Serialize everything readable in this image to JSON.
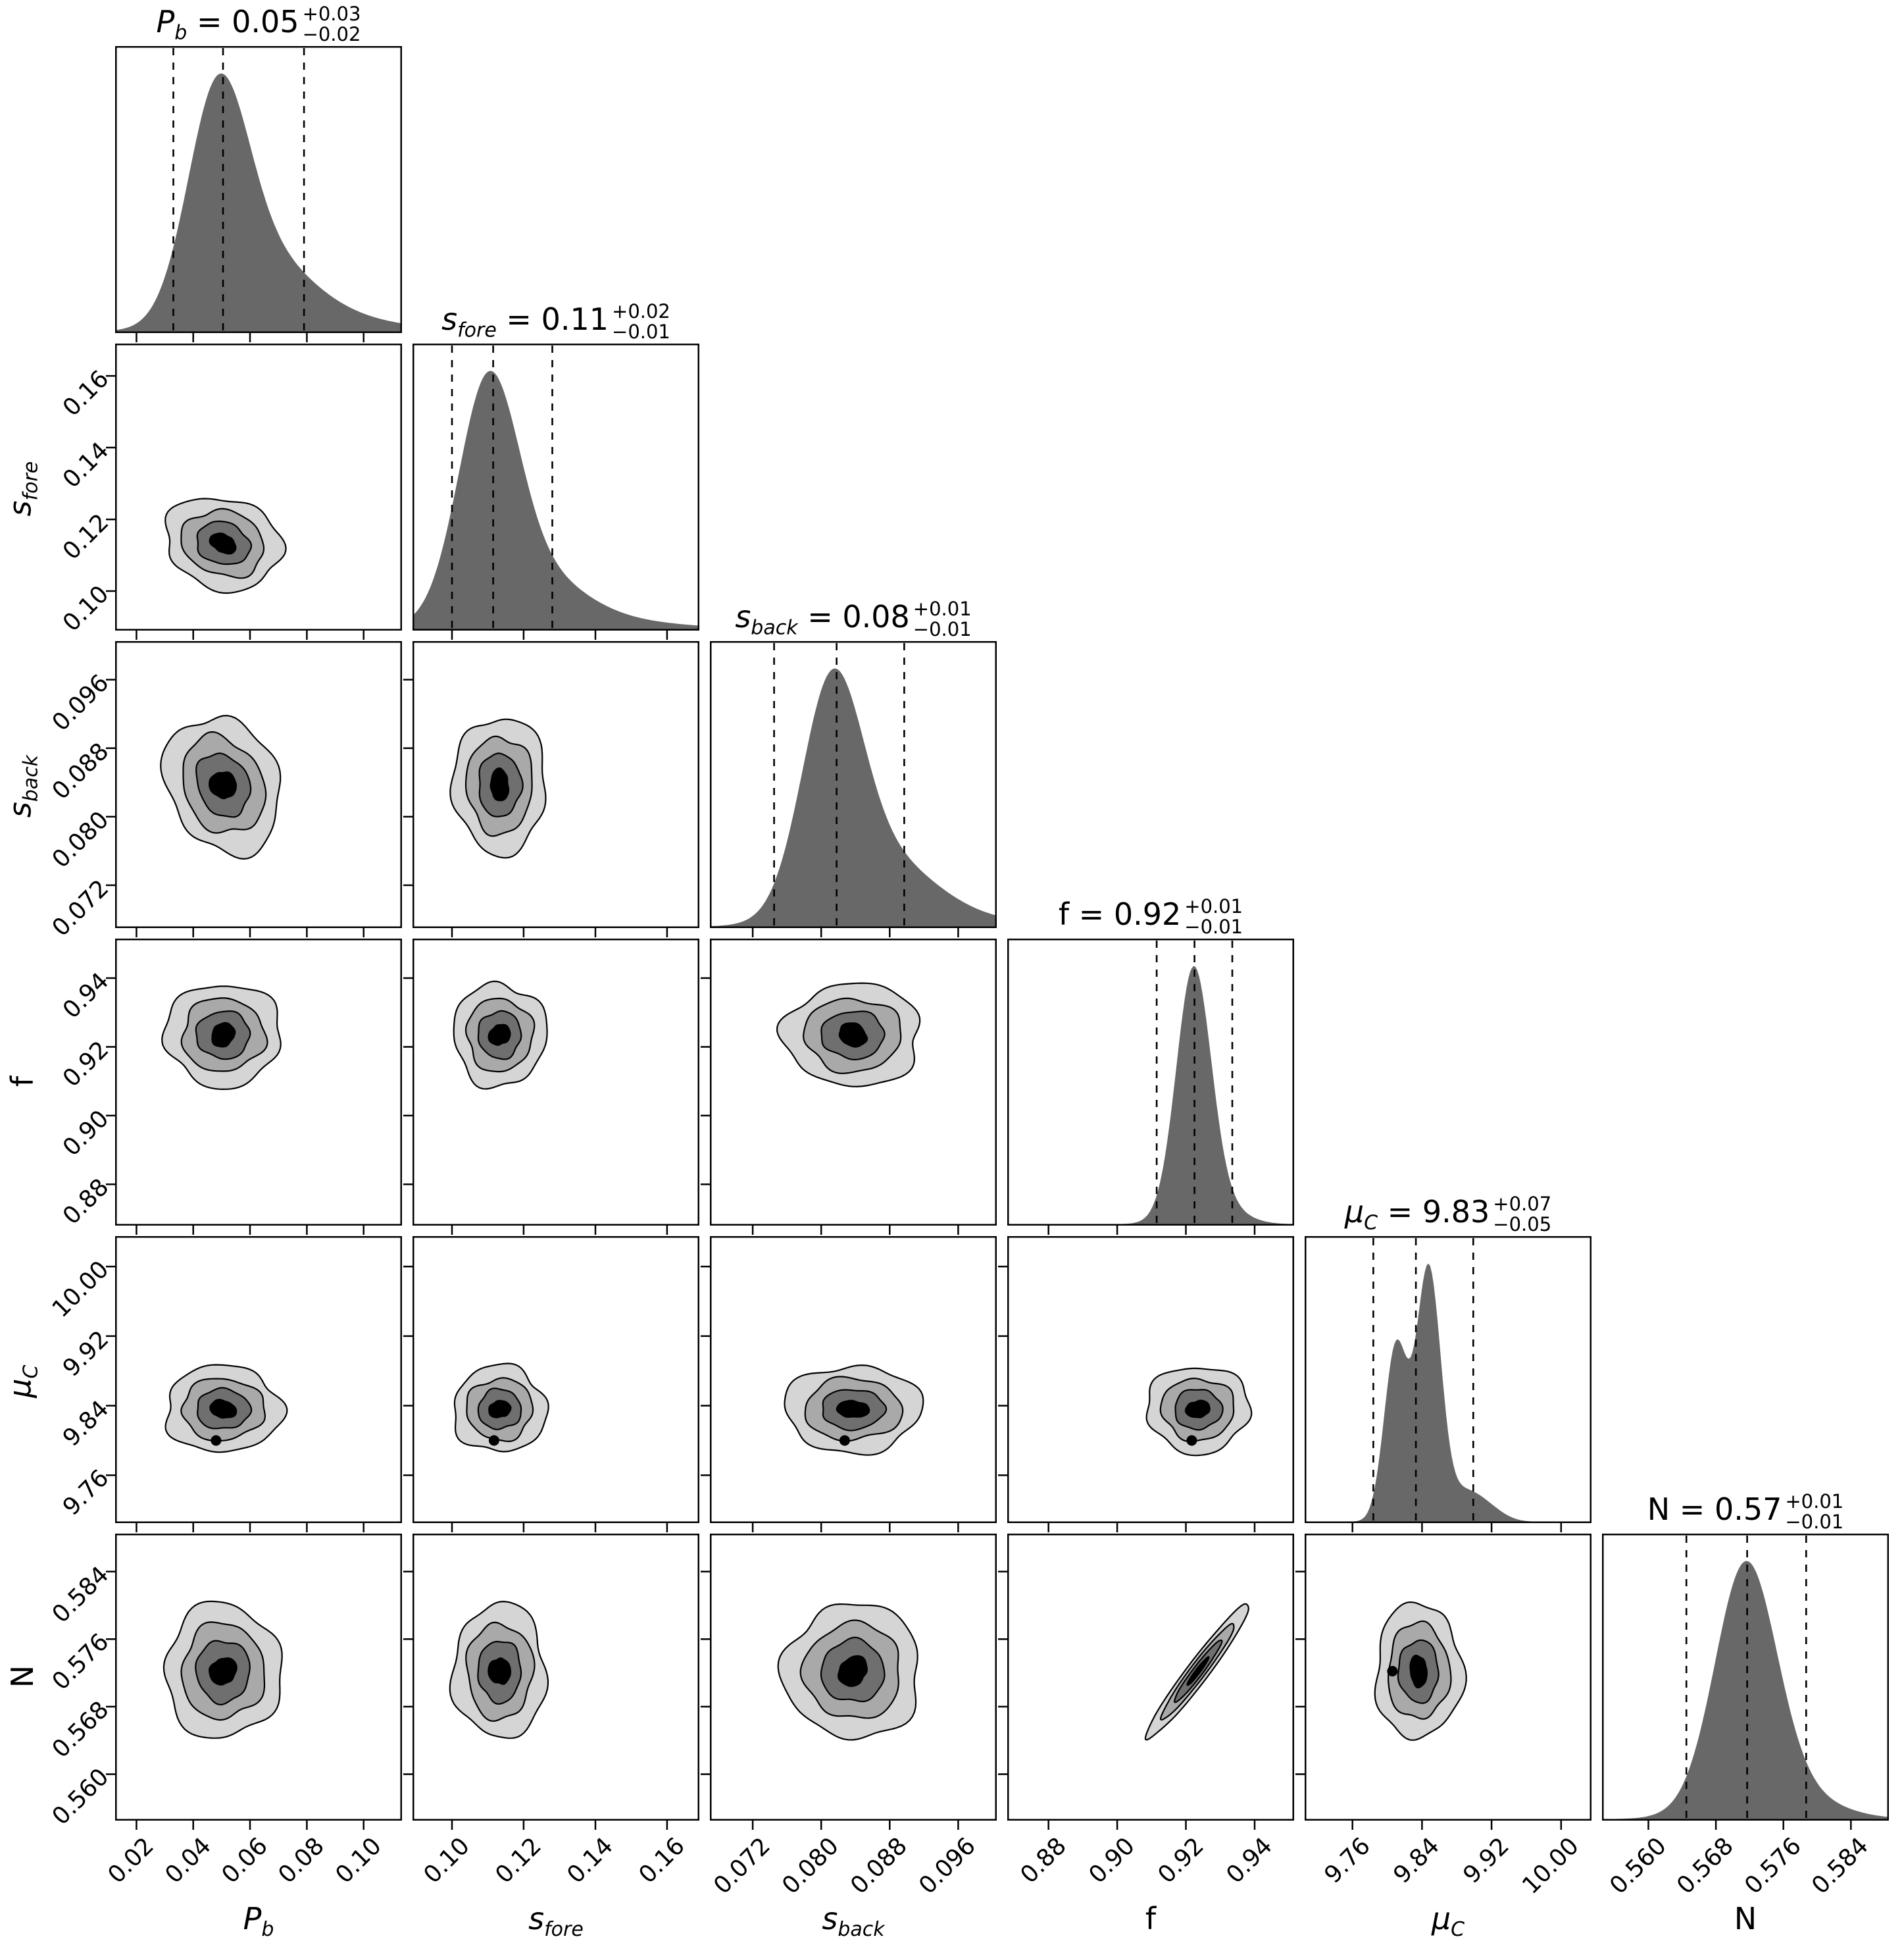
{
  "figure": {
    "kind": "corner-plot",
    "background": "#ffffff",
    "n_parameters": 6
  },
  "style": {
    "hist_fill": "#686868",
    "contour_fills": [
      "#d5d5d5",
      "#a9a9a9",
      "#6f6f6f",
      "#000000"
    ],
    "line_color": "#000000",
    "dash_color": "#000000"
  },
  "chart_data": {
    "type": "corner",
    "layout_hint": "6x6 lower-triangle corner plot; diagonals are 1-D marginal densities with dashed 16/50/84 percentile lines; off-diagonals are 2-D contour maps with 4 shaded levels",
    "parameters": [
      {
        "key": "P_b",
        "label": {
          "base": "P",
          "sub": "b",
          "italic": true
        },
        "summary": {
          "value": "0.05",
          "plus": "+0.03",
          "minus": "−0.02"
        },
        "range": [
          0.0125,
          0.1135
        ],
        "ticks": [
          0.02,
          0.04,
          0.06,
          0.08,
          0.1
        ],
        "tick_labels": [
          "0.02",
          "0.04",
          "0.06",
          "0.08",
          "0.10"
        ],
        "quantiles": [
          0.033,
          0.0505,
          0.079
        ],
        "density": [
          {
            "mu": 0.0485,
            "sigma": 0.0105,
            "w": 1.0
          },
          {
            "mu": 0.063,
            "sigma": 0.017,
            "w": 0.32
          },
          {
            "mu": 0.085,
            "sigma": 0.025,
            "w": 0.07
          }
        ],
        "blob": {
          "center": 0.0505,
          "radius": 0.0205
        }
      },
      {
        "key": "s_fore",
        "label": {
          "base": "s",
          "sub": "fore",
          "italic": true
        },
        "summary": {
          "value": "0.11",
          "plus": "+0.02",
          "minus": "−0.01"
        },
        "range": [
          0.089,
          0.169
        ],
        "ticks": [
          0.1,
          0.12,
          0.14,
          0.16
        ],
        "tick_labels": [
          "0.10",
          "0.12",
          "0.14",
          "0.16"
        ],
        "quantiles": [
          0.1,
          0.1115,
          0.128
        ],
        "density": [
          {
            "mu": 0.11,
            "sigma": 0.0082,
            "w": 1.0
          },
          {
            "mu": 0.12,
            "sigma": 0.014,
            "w": 0.26
          },
          {
            "mu": 0.138,
            "sigma": 0.022,
            "w": 0.045
          }
        ],
        "blob": {
          "center": 0.1133,
          "radius": 0.013
        }
      },
      {
        "key": "s_back",
        "label": {
          "base": "s",
          "sub": "back",
          "italic": true
        },
        "summary": {
          "value": "0.08",
          "plus": "+0.01",
          "minus": "−0.01"
        },
        "range": [
          0.067,
          0.1005
        ],
        "ticks": [
          0.072,
          0.08,
          0.088,
          0.096
        ],
        "tick_labels": [
          "0.072",
          "0.080",
          "0.088",
          "0.096"
        ],
        "quantiles": [
          0.0745,
          0.0818,
          0.0897
        ],
        "density": [
          {
            "mu": 0.0812,
            "sigma": 0.0035,
            "w": 1.0
          },
          {
            "mu": 0.0865,
            "sigma": 0.006,
            "w": 0.3
          },
          {
            "mu": 0.0925,
            "sigma": 0.009,
            "w": 0.05
          }
        ],
        "blob": {
          "center": 0.0837,
          "radius": 0.008
        }
      },
      {
        "key": "f",
        "label": {
          "base": "f",
          "sub": "",
          "italic": false
        },
        "summary": {
          "value": "0.92",
          "plus": "+0.01",
          "minus": "−0.01"
        },
        "range": [
          0.868,
          0.9515
        ],
        "ticks": [
          0.88,
          0.9,
          0.92,
          0.94
        ],
        "tick_labels": [
          "0.88",
          "0.90",
          "0.92",
          "0.94"
        ],
        "quantiles": [
          0.9115,
          0.9225,
          0.9335
        ],
        "density": [
          {
            "mu": 0.9222,
            "sigma": 0.005,
            "w": 1.0
          },
          {
            "mu": 0.926,
            "sigma": 0.008,
            "w": 0.12
          }
        ],
        "blob": {
          "center": 0.9235,
          "radius": 0.015
        }
      },
      {
        "key": "mu_C",
        "label": {
          "base": "μ",
          "sub": "C",
          "italic": true
        },
        "summary": {
          "value": "9.83",
          "plus": "+0.07",
          "minus": "−0.05"
        },
        "range": [
          9.705,
          10.035
        ],
        "ticks": [
          9.76,
          9.84,
          9.92,
          10.0
        ],
        "tick_labels": [
          "9.76",
          "9.84",
          "9.92",
          "10.00"
        ],
        "quantiles": [
          9.784,
          9.833,
          9.899
        ],
        "density": [
          {
            "mu": 9.81,
            "sigma": 0.0135,
            "w": 0.7
          },
          {
            "mu": 9.8475,
            "sigma": 0.014,
            "w": 1.0
          },
          {
            "mu": 9.888,
            "sigma": 0.022,
            "w": 0.12
          },
          {
            "mu": 9.92,
            "sigma": 0.018,
            "w": 0.03
          }
        ],
        "blob": {
          "center": 9.836,
          "radius": 0.05
        },
        "bimodal": true,
        "second_mode": 9.8
      },
      {
        "key": "N",
        "label": {
          "base": "N",
          "sub": "",
          "italic": false
        },
        "summary": {
          "value": "0.57",
          "plus": "+0.01",
          "minus": "−0.01"
        },
        "range": [
          0.5545,
          0.5885
        ],
        "ticks": [
          0.56,
          0.568,
          0.576,
          0.584
        ],
        "tick_labels": [
          "0.560",
          "0.568",
          "0.576",
          "0.584"
        ],
        "quantiles": [
          0.5645,
          0.5717,
          0.5787
        ],
        "density": [
          {
            "mu": 0.5715,
            "sigma": 0.0036,
            "w": 1.0
          },
          {
            "mu": 0.5745,
            "sigma": 0.006,
            "w": 0.15
          }
        ],
        "blob": {
          "center": 0.5722,
          "radius": 0.008
        }
      }
    ],
    "correlations": {
      "f-N": 0.965,
      "P_b-s_fore": -0.15,
      "P_b-s_back": -0.2
    },
    "contour_scales": [
      1.0,
      0.71,
      0.46,
      0.21
    ],
    "grid": false,
    "legend": false
  }
}
